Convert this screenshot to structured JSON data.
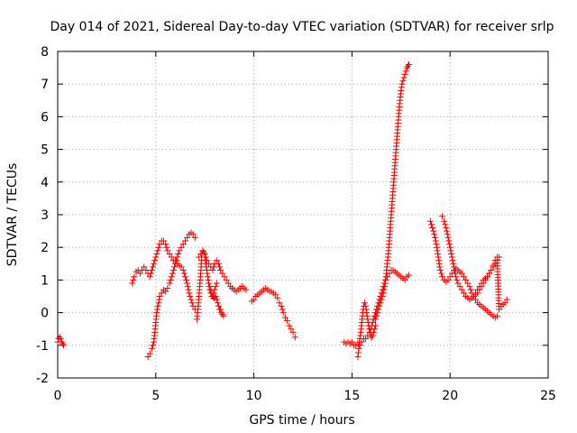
{
  "chart_data": {
    "type": "scatter",
    "title": "Day 014 of 2021, Sidereal Day-to-day VTEC variation (SDTVAR) for receiver srlp",
    "xlabel": "GPS time / hours",
    "ylabel": "SDTVAR / TECUs",
    "xlim": [
      0,
      25
    ],
    "ylim": [
      -2,
      8
    ],
    "xticks": [
      0,
      5,
      10,
      15,
      20,
      25
    ],
    "yticks": [
      -2,
      -1,
      0,
      1,
      2,
      3,
      4,
      5,
      6,
      7,
      8
    ],
    "grid": true,
    "marker": "+",
    "color": "#ff0000",
    "series": [
      {
        "name": "SDTVAR",
        "segments": [
          {
            "x": [
              0.0,
              0.05,
              0.1,
              0.15,
              0.2,
              0.25,
              0.3
            ],
            "y": [
              -0.9,
              -0.8,
              -0.75,
              -0.8,
              -0.9,
              -0.95,
              -1.0
            ]
          },
          {
            "x": [
              3.8,
              3.9,
              4.0,
              4.1,
              4.2,
              4.3,
              4.4,
              4.5,
              4.6,
              4.7,
              4.8,
              4.9,
              5.0,
              5.1,
              5.2,
              5.3,
              5.4,
              5.5,
              5.6,
              5.7,
              5.8,
              5.9,
              6.0,
              6.1,
              6.2,
              6.3,
              6.4,
              6.5,
              6.6,
              6.7,
              6.8,
              6.9,
              7.0
            ],
            "y": [
              0.9,
              1.1,
              1.25,
              1.3,
              1.2,
              1.3,
              1.4,
              1.3,
              1.2,
              1.1,
              1.3,
              1.5,
              1.7,
              1.9,
              2.1,
              2.2,
              2.2,
              2.1,
              1.9,
              1.8,
              1.7,
              1.6,
              1.6,
              1.5,
              1.45,
              1.4,
              1.3,
              1.1,
              0.9,
              0.6,
              0.4,
              0.2,
              0.1
            ]
          },
          {
            "x": [
              4.6,
              4.7,
              4.8,
              4.9,
              4.95,
              5.0,
              5.05,
              5.1,
              5.15,
              5.2,
              5.3,
              5.4,
              5.5,
              5.6,
              5.7,
              5.8,
              5.9,
              6.0,
              6.1,
              6.2,
              6.3,
              6.4,
              6.5,
              6.6,
              6.7,
              6.8,
              6.9,
              7.0
            ],
            "y": [
              -1.35,
              -1.25,
              -1.1,
              -0.9,
              -0.6,
              -0.3,
              0.0,
              0.2,
              0.3,
              0.5,
              0.6,
              0.7,
              0.65,
              0.75,
              0.9,
              1.1,
              1.3,
              1.5,
              1.7,
              1.9,
              2.0,
              2.1,
              2.2,
              2.3,
              2.4,
              2.45,
              2.4,
              2.3
            ]
          },
          {
            "x": [
              7.1,
              7.15,
              7.2,
              7.25,
              7.3,
              7.35,
              7.4,
              7.45,
              7.5,
              7.55,
              7.6,
              7.65,
              7.7,
              7.75,
              7.8,
              7.85,
              7.9,
              7.95,
              8.0,
              8.05,
              8.1
            ],
            "y": [
              -0.2,
              0.1,
              0.5,
              0.9,
              1.3,
              1.8,
              1.9,
              1.85,
              1.7,
              1.5,
              1.3,
              1.1,
              0.9,
              0.7,
              0.6,
              0.5,
              0.5,
              0.6,
              0.7,
              0.8,
              0.9
            ]
          },
          {
            "x": [
              7.2,
              7.3,
              7.4,
              7.5,
              7.6,
              7.7,
              7.8,
              7.9,
              8.0,
              8.1,
              8.2,
              8.3,
              8.4,
              8.5,
              8.6,
              8.7,
              8.8,
              8.9,
              9.0,
              9.1,
              9.2,
              9.3,
              9.4,
              9.5,
              9.6
            ],
            "y": [
              1.7,
              1.8,
              1.9,
              1.8,
              1.6,
              1.5,
              1.4,
              1.3,
              1.5,
              1.6,
              1.5,
              1.3,
              1.2,
              1.1,
              1.0,
              0.9,
              0.8,
              0.75,
              0.7,
              0.65,
              0.7,
              0.75,
              0.8,
              0.75,
              0.7
            ]
          },
          {
            "x": [
              7.7,
              7.75,
              7.8,
              7.85,
              7.9,
              7.95,
              8.0,
              8.05,
              8.1,
              8.15,
              8.2,
              8.25,
              8.3,
              8.35,
              8.4,
              8.45
            ],
            "y": [
              0.9,
              0.8,
              0.7,
              0.6,
              0.5,
              0.45,
              0.45,
              0.5,
              0.4,
              0.3,
              0.2,
              0.1,
              0.1,
              0.0,
              -0.05,
              -0.1
            ]
          },
          {
            "x": [
              9.9,
              10.0,
              10.1,
              10.2,
              10.3,
              10.4,
              10.5,
              10.6,
              10.7,
              10.8,
              10.9,
              11.0,
              11.1,
              11.2,
              11.3,
              11.4,
              11.5,
              11.6,
              11.7,
              11.8,
              11.9,
              12.0,
              12.1
            ],
            "y": [
              0.35,
              0.4,
              0.5,
              0.55,
              0.6,
              0.65,
              0.7,
              0.75,
              0.7,
              0.65,
              0.65,
              0.6,
              0.55,
              0.45,
              0.3,
              0.2,
              0.0,
              -0.15,
              -0.25,
              -0.4,
              -0.5,
              -0.6,
              -0.75
            ]
          },
          {
            "x": [
              14.6,
              14.7,
              14.8,
              14.9,
              15.0,
              15.1,
              15.2,
              15.3,
              15.4,
              15.5,
              15.6,
              15.7,
              15.8,
              15.9,
              16.0,
              16.1,
              16.2,
              16.3,
              16.4,
              16.5,
              16.6,
              16.7,
              16.8,
              16.9,
              17.0,
              17.1,
              17.2,
              17.3,
              17.4,
              17.5,
              17.6,
              17.7,
              17.8,
              17.9
            ],
            "y": [
              -0.9,
              -0.95,
              -0.9,
              -0.95,
              -0.9,
              -1.0,
              -1.0,
              -0.95,
              -1.0,
              -0.9,
              -0.8,
              -0.8,
              -0.7,
              -0.6,
              -0.4,
              -0.2,
              0.0,
              0.2,
              0.4,
              0.6,
              0.8,
              1.0,
              1.1,
              1.2,
              1.3,
              1.3,
              1.25,
              1.2,
              1.15,
              1.1,
              1.05,
              1.0,
              1.1,
              1.15
            ]
          },
          {
            "x": [
              15.3,
              15.35,
              15.4,
              15.45,
              15.5,
              15.55,
              15.6,
              15.65,
              15.7,
              15.75,
              15.8,
              15.85,
              15.9,
              15.95,
              16.0,
              16.05,
              16.1,
              16.15,
              16.2
            ],
            "y": [
              -1.35,
              -1.1,
              -0.8,
              -0.6,
              -0.3,
              0.0,
              0.2,
              0.3,
              0.2,
              0.0,
              -0.2,
              -0.4,
              -0.6,
              -0.7,
              -0.75,
              -0.7,
              -0.6,
              -0.5,
              -0.4
            ]
          },
          {
            "x": [
              16.2,
              16.3,
              16.4,
              16.5,
              16.6,
              16.7,
              16.75,
              16.8,
              16.85,
              16.9,
              16.95,
              17.0,
              17.05,
              17.1,
              17.15,
              17.2,
              17.25,
              17.3,
              17.35,
              17.4,
              17.45,
              17.5,
              17.55,
              17.6,
              17.65,
              17.7,
              17.75,
              17.8,
              17.85,
              17.9
            ],
            "y": [
              -0.2,
              0.0,
              0.2,
              0.4,
              0.6,
              0.9,
              1.2,
              1.5,
              1.8,
              2.2,
              2.6,
              3.0,
              3.4,
              3.8,
              4.2,
              4.6,
              5.0,
              5.4,
              5.8,
              6.2,
              6.5,
              6.8,
              7.0,
              7.1,
              7.2,
              7.3,
              7.4,
              7.5,
              7.55,
              7.6
            ]
          },
          {
            "x": [
              19.0,
              19.1,
              19.2,
              19.3,
              19.4,
              19.5,
              19.6,
              19.7,
              19.8,
              19.9,
              20.0,
              20.1,
              20.2,
              20.3,
              20.4,
              20.5,
              20.6,
              20.7,
              20.8,
              20.9,
              21.0,
              21.1,
              21.2,
              21.3,
              21.4,
              21.5,
              21.6,
              21.7,
              21.8,
              21.9,
              22.0,
              22.1,
              22.2,
              22.3,
              22.4
            ],
            "y": [
              2.8,
              2.6,
              2.4,
              2.1,
              1.7,
              1.3,
              1.1,
              1.0,
              0.95,
              1.0,
              1.1,
              1.2,
              1.3,
              1.35,
              1.3,
              1.25,
              1.2,
              1.1,
              1.0,
              0.9,
              0.8,
              0.6,
              0.5,
              0.4,
              0.3,
              0.25,
              0.2,
              0.15,
              0.1,
              0.05,
              0.0,
              -0.05,
              -0.1,
              -0.15,
              -0.1
            ]
          },
          {
            "x": [
              19.6,
              19.7,
              19.8,
              19.9,
              20.0,
              20.1,
              20.2,
              20.3,
              20.4,
              20.5,
              20.6,
              20.7,
              20.8,
              20.9,
              21.0,
              21.1,
              21.2,
              21.3,
              21.4,
              21.5,
              21.6,
              21.7,
              21.8,
              21.9,
              22.0,
              22.1,
              22.2,
              22.3,
              22.4,
              22.5,
              22.6,
              22.7,
              22.8,
              22.9
            ],
            "y": [
              2.95,
              2.8,
              2.6,
              2.3,
              2.0,
              1.7,
              1.4,
              1.1,
              0.9,
              0.8,
              0.7,
              0.6,
              0.5,
              0.45,
              0.4,
              0.45,
              0.5,
              0.55,
              0.6,
              0.7,
              0.8,
              0.9,
              1.0,
              1.1,
              1.2,
              1.3,
              1.45,
              1.6,
              1.7,
              0.1,
              0.2,
              0.25,
              0.3,
              0.4
            ]
          },
          {
            "x": [
              21.2,
              21.3,
              21.4,
              21.5,
              21.6,
              21.7,
              21.8,
              21.9,
              22.0,
              22.1,
              22.2,
              22.3,
              22.4,
              22.5
            ],
            "y": [
              0.5,
              0.6,
              0.7,
              0.8,
              0.9,
              1.0,
              1.05,
              1.1,
              1.2,
              1.3,
              1.4,
              1.5,
              1.6,
              1.7
            ]
          }
        ]
      }
    ]
  }
}
